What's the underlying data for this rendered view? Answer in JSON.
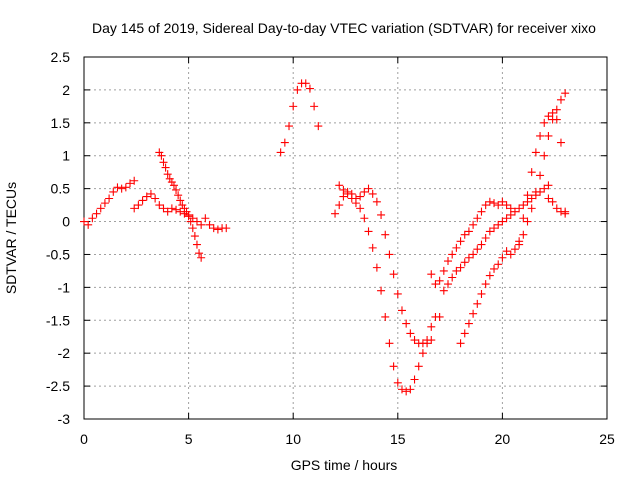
{
  "chart_data": {
    "type": "scatter",
    "title": "Day 145 of 2019, Sidereal Day-to-day VTEC variation (SDTVAR) for receiver xixo",
    "xlabel": "GPS time / hours",
    "ylabel": "SDTVAR / TECUs",
    "xlim": [
      0,
      25
    ],
    "ylim": [
      -3,
      2.5
    ],
    "x_ticks": [
      0,
      5,
      10,
      15,
      20,
      25
    ],
    "x_tick_labels": [
      "0",
      "5",
      "10",
      "15",
      "20",
      "25"
    ],
    "y_ticks": [
      -3,
      -2.5,
      -2,
      -1.5,
      -1,
      -0.5,
      0,
      0.5,
      1,
      1.5,
      2,
      2.5
    ],
    "y_tick_labels": [
      "-3",
      "-2.5",
      "-2",
      "-1.5",
      "-1",
      "-0.5",
      "0",
      "0.5",
      "1",
      "1.5",
      "2",
      "2.5"
    ],
    "grid": true,
    "marker": "+",
    "color": "#ff0000",
    "series": [
      {
        "x": [
          0.0,
          0.2,
          0.4,
          0.6,
          0.8,
          1.0,
          1.2,
          1.4,
          1.6,
          1.8,
          2.0,
          2.2,
          2.4,
          2.4,
          2.6,
          2.8,
          3.0,
          3.2,
          3.4,
          3.6,
          3.8,
          4.0,
          4.2,
          4.4,
          4.6,
          4.8,
          5.0,
          5.2,
          5.4,
          5.6,
          5.8,
          6.0,
          6.2,
          6.4,
          6.6,
          6.8
        ],
        "y": [
          0.0,
          -0.05,
          0.05,
          0.12,
          0.2,
          0.28,
          0.35,
          0.45,
          0.52,
          0.5,
          0.52,
          0.58,
          0.62,
          0.2,
          0.25,
          0.32,
          0.38,
          0.42,
          0.35,
          0.25,
          0.2,
          0.15,
          0.2,
          0.18,
          0.15,
          0.12,
          0.1,
          0.05,
          0.0,
          -0.05,
          0.05,
          -0.05,
          -0.1,
          -0.12,
          -0.1,
          -0.1
        ]
      },
      {
        "x": [
          3.6,
          3.7,
          3.8,
          3.9,
          4.0,
          4.1,
          4.2,
          4.3,
          4.4,
          4.5,
          4.6,
          4.7,
          4.8,
          4.9,
          5.0,
          5.1,
          5.2,
          5.3,
          5.4,
          5.5,
          5.6
        ],
        "y": [
          1.05,
          1.0,
          0.9,
          0.82,
          0.72,
          0.65,
          0.6,
          0.55,
          0.48,
          0.4,
          0.32,
          0.25,
          0.2,
          0.15,
          0.08,
          0.0,
          -0.1,
          -0.22,
          -0.35,
          -0.48,
          -0.55
        ]
      },
      {
        "x": [
          9.4,
          9.6,
          9.8,
          10.0,
          10.2,
          10.4,
          10.6,
          10.8,
          11.0,
          11.2
        ],
        "y": [
          1.05,
          1.2,
          1.45,
          1.75,
          2.0,
          2.1,
          2.1,
          2.02,
          1.75,
          1.45
        ]
      },
      {
        "x": [
          12.2,
          12.4,
          12.6,
          12.8,
          13.0,
          13.2,
          13.4,
          13.6,
          13.8,
          14.0,
          14.2,
          14.4,
          14.6,
          14.8,
          15.0,
          15.2,
          15.4,
          15.6,
          15.8,
          16.0,
          16.2,
          16.4,
          16.6,
          16.8,
          17.0
        ],
        "y": [
          0.55,
          0.48,
          0.42,
          0.35,
          0.28,
          0.2,
          0.05,
          -0.15,
          -0.4,
          -0.7,
          -1.05,
          -1.45,
          -1.85,
          -2.2,
          -2.45,
          -2.55,
          -2.58,
          -2.55,
          -2.4,
          -2.2,
          -2.0,
          -1.8,
          -1.6,
          -1.45,
          -1.45
        ]
      },
      {
        "x": [
          12.0,
          12.2,
          12.4,
          12.6,
          12.8,
          13.0,
          13.2,
          13.4,
          13.6,
          13.8,
          14.0,
          14.2,
          14.4,
          14.6,
          14.8,
          15.0,
          15.2,
          15.4,
          15.6,
          15.8,
          16.0,
          16.2,
          16.4,
          16.6
        ],
        "y": [
          0.12,
          0.25,
          0.38,
          0.45,
          0.42,
          0.35,
          0.38,
          0.45,
          0.5,
          0.42,
          0.3,
          0.1,
          -0.2,
          -0.5,
          -0.8,
          -1.1,
          -1.35,
          -1.55,
          -1.7,
          -1.8,
          -1.85,
          -1.85,
          -1.85,
          -1.8
        ]
      },
      {
        "x": [
          16.6,
          16.8,
          17.0,
          17.2,
          17.4,
          17.6,
          17.8,
          18.0,
          18.2,
          18.4,
          18.6,
          18.8,
          19.0,
          19.2,
          19.4,
          19.6,
          19.8,
          20.0,
          20.2,
          20.4
        ],
        "y": [
          -0.8,
          -0.95,
          -0.9,
          -0.75,
          -0.6,
          -0.5,
          -0.4,
          -0.3,
          -0.2,
          -0.15,
          -0.05,
          0.05,
          0.15,
          0.25,
          0.3,
          0.28,
          0.25,
          0.3,
          0.25,
          0.2
        ]
      },
      {
        "x": [
          17.2,
          17.4,
          17.6,
          17.8,
          18.0,
          18.2,
          18.4,
          18.6,
          18.8,
          19.0,
          19.2,
          19.4,
          19.6,
          19.8,
          20.0,
          20.2,
          20.4,
          20.6,
          20.8,
          21.0,
          21.2,
          21.4,
          21.6,
          21.8,
          22.0,
          22.2
        ],
        "y": [
          -1.05,
          -0.95,
          -0.85,
          -0.75,
          -0.7,
          -0.62,
          -0.55,
          -0.5,
          -0.42,
          -0.35,
          -0.25,
          -0.15,
          -0.1,
          -0.05,
          0.0,
          0.05,
          0.1,
          0.15,
          0.2,
          0.25,
          0.3,
          0.35,
          0.4,
          0.45,
          0.5,
          0.55
        ]
      },
      {
        "x": [
          18.0,
          18.2,
          18.4,
          18.6,
          18.8,
          19.0,
          19.2,
          19.4,
          19.6,
          19.8,
          20.0,
          20.2,
          20.4,
          20.6,
          20.8,
          21.0,
          21.2,
          21.4,
          21.6,
          21.8,
          22.0,
          22.2,
          22.4,
          22.6,
          22.8,
          23.0
        ],
        "y": [
          -1.85,
          -1.7,
          -1.55,
          -1.4,
          -1.25,
          -1.1,
          -0.95,
          -0.82,
          -0.72,
          -0.65,
          -0.55,
          -0.45,
          -0.5,
          -0.42,
          -0.35,
          -0.2,
          0.0,
          0.2,
          0.45,
          0.7,
          1.0,
          1.3,
          1.55,
          1.7,
          1.85,
          1.95
        ]
      },
      {
        "x": [
          20.8,
          21.0,
          21.2,
          21.4,
          21.6,
          21.8,
          22.0,
          22.2,
          22.4,
          22.6,
          22.8,
          23.0
        ],
        "y": [
          -0.3,
          0.05,
          0.4,
          0.75,
          1.05,
          1.3,
          1.5,
          1.6,
          1.65,
          1.55,
          1.2,
          0.15
        ]
      },
      {
        "x": [
          22.2,
          22.4,
          22.6,
          22.8,
          23.0
        ],
        "y": [
          0.35,
          0.3,
          0.2,
          0.15,
          0.12
        ]
      }
    ]
  }
}
